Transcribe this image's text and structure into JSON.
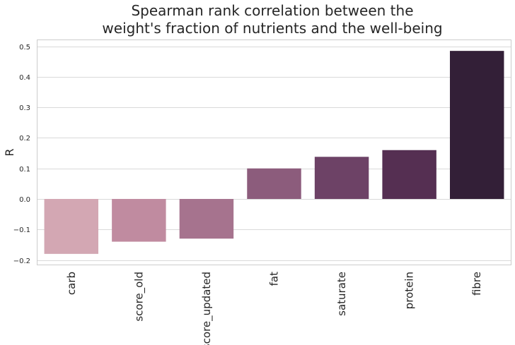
{
  "chart_data": {
    "type": "bar",
    "title_lines": [
      "Spearman rank correlation between the",
      "weight's fraction of nutrients and the well-being"
    ],
    "xlabel": "",
    "ylabel": "R",
    "categories": [
      "carb",
      "score_old",
      "score_updated",
      "fat",
      "saturate",
      "protein",
      "fibre"
    ],
    "values": [
      -0.18,
      -0.14,
      -0.13,
      0.1,
      0.138,
      0.16,
      0.485
    ],
    "colors": [
      "#d3a7b3",
      "#c08ba0",
      "#a6738e",
      "#8c5c7c",
      "#6d4266",
      "#552f52",
      "#331f37"
    ],
    "ylim": [
      -0.215,
      0.52
    ],
    "yticks": [
      -0.2,
      -0.1,
      0.0,
      0.1,
      0.2,
      0.3,
      0.4,
      0.5
    ],
    "ytick_labels": [
      "−0.2",
      "−0.1",
      "0.0",
      "0.1",
      "0.2",
      "0.3",
      "0.4",
      "0.5"
    ],
    "grid": true,
    "grid_axis": "y",
    "legend": "none"
  }
}
